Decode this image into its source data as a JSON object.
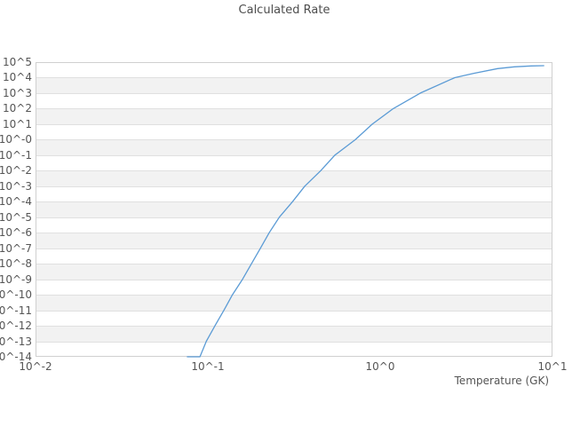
{
  "chart_data": {
    "type": "line",
    "title": "Calculated Rate",
    "xlabel": "Temperature (GK)",
    "ylabel": "",
    "x_scale": "log",
    "y_scale": "log",
    "xlim": [
      0.01,
      10
    ],
    "ylim": [
      1e-14,
      100000.0
    ],
    "grid": "horizontal-only",
    "legend": "none",
    "band_alternating": true,
    "x_tick_values": [
      0.01,
      0.1,
      1,
      10
    ],
    "x_tick_labels": [
      "10^-2",
      "10^-1",
      "10^0",
      "10^1"
    ],
    "y_tick_values": [
      100000.0,
      10000.0,
      1000.0,
      100.0,
      10.0,
      1.0,
      0.1,
      0.01,
      0.001,
      0.0001,
      1e-05,
      1e-06,
      1e-07,
      1e-08,
      1e-09,
      1e-10,
      1e-11,
      1e-12,
      1e-13,
      1e-14
    ],
    "y_tick_labels": [
      "10^5",
      "10^4",
      "10^3",
      "10^2",
      "10^1",
      "10^-0",
      "10^-1",
      "10^-2",
      "10^-3",
      "10^-4",
      "10^-5",
      "10^-6",
      "10^-7",
      "10^-8",
      "10^-9",
      "10^-10",
      "10^-11",
      "10^-12",
      "10^-13",
      "10^-14"
    ],
    "series": [
      {
        "name": "calculated-rate",
        "color": "#5b9bd5",
        "points": [
          [
            0.076,
            1e-14
          ],
          [
            0.09,
            1e-14
          ],
          [
            0.098,
            1e-13
          ],
          [
            0.11,
            1e-12
          ],
          [
            0.124,
            1e-11
          ],
          [
            0.139,
            1e-10
          ],
          [
            0.159,
            1e-09
          ],
          [
            0.179,
            1e-08
          ],
          [
            0.202,
            1e-07
          ],
          [
            0.227,
            1e-06
          ],
          [
            0.26,
            1e-05
          ],
          [
            0.31,
            0.0001
          ],
          [
            0.365,
            0.001
          ],
          [
            0.452,
            0.01
          ],
          [
            0.546,
            0.1
          ],
          [
            0.717,
            1.0
          ],
          [
            0.9,
            10
          ],
          [
            1.19,
            100
          ],
          [
            1.71,
            1000
          ],
          [
            2.71,
            10000.0
          ],
          [
            3.5,
            19000.0
          ],
          [
            4.8,
            38000.0
          ],
          [
            6.0,
            50000.0
          ],
          [
            7.5,
            57000.0
          ],
          [
            8.9,
            59000.0
          ]
        ]
      }
    ],
    "colors": {
      "band": "#f2f2f2",
      "grid": "#e0e0e0",
      "border": "#d0d0d0",
      "text": "#555555",
      "title_text": "#4d4d4d",
      "line": "#5b9bd5",
      "background": "#ffffff"
    }
  }
}
